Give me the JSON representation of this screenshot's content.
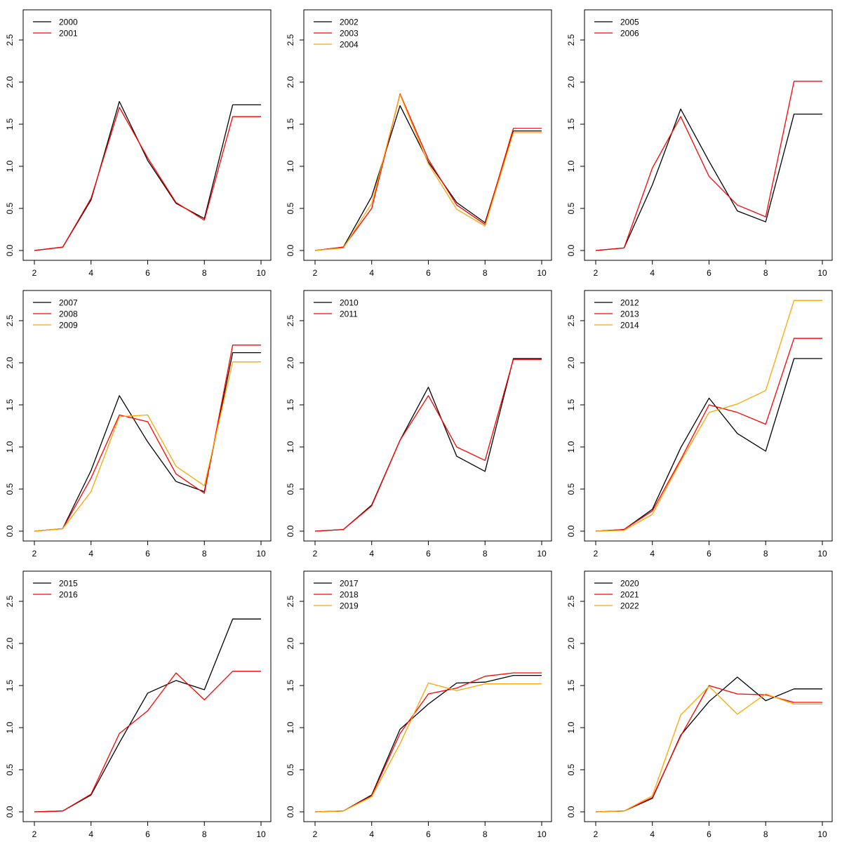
{
  "colors": [
    "#000000",
    "#ff0000",
    "#ffa500"
  ],
  "chart_data": [
    {
      "type": "line",
      "x": [
        2,
        3,
        4,
        5,
        6,
        7,
        8,
        9,
        10
      ],
      "xlim": [
        2,
        10
      ],
      "ylim": [
        0,
        2.75
      ],
      "xticks": [
        "2",
        "4",
        "6",
        "8",
        "10"
      ],
      "yticks": [
        "0.0",
        "0.5",
        "1.0",
        "1.5",
        "2.0",
        "2.5"
      ],
      "legend": "top-left",
      "xlabel": "",
      "ylabel": "",
      "series": [
        {
          "name": "2000",
          "color": "#000000",
          "values": [
            0,
            0.04,
            0.6,
            1.77,
            1.07,
            0.56,
            0.38,
            1.73,
            1.73
          ]
        },
        {
          "name": "2001",
          "color": "#ff0000",
          "values": [
            0,
            0.04,
            0.62,
            1.7,
            1.1,
            0.57,
            0.36,
            1.59,
            1.59
          ]
        }
      ]
    },
    {
      "type": "line",
      "x": [
        2,
        3,
        4,
        5,
        6,
        7,
        8,
        9,
        10
      ],
      "xlim": [
        2,
        10
      ],
      "ylim": [
        0,
        2.75
      ],
      "xticks": [
        "2",
        "4",
        "6",
        "8",
        "10"
      ],
      "yticks": [
        "0.0",
        "0.5",
        "1.0",
        "1.5",
        "2.0",
        "2.5"
      ],
      "legend": "top-left",
      "xlabel": "",
      "ylabel": "",
      "series": [
        {
          "name": "2002",
          "color": "#000000",
          "values": [
            0,
            0.04,
            0.64,
            1.72,
            1.05,
            0.57,
            0.33,
            1.42,
            1.42
          ]
        },
        {
          "name": "2003",
          "color": "#ff0000",
          "values": [
            0,
            0.04,
            0.5,
            1.86,
            1.08,
            0.54,
            0.31,
            1.45,
            1.45
          ]
        },
        {
          "name": "2004",
          "color": "#ffa500",
          "values": [
            0,
            0.03,
            0.56,
            1.85,
            1.03,
            0.49,
            0.29,
            1.4,
            1.4
          ]
        }
      ]
    },
    {
      "type": "line",
      "x": [
        2,
        3,
        4,
        5,
        6,
        7,
        8,
        9,
        10
      ],
      "xlim": [
        2,
        10
      ],
      "ylim": [
        0,
        2.75
      ],
      "xticks": [
        "2",
        "4",
        "6",
        "8",
        "10"
      ],
      "yticks": [
        "0.0",
        "0.5",
        "1.0",
        "1.5",
        "2.0",
        "2.5"
      ],
      "legend": "top-left",
      "xlabel": "",
      "ylabel": "",
      "series": [
        {
          "name": "2005",
          "color": "#000000",
          "values": [
            0,
            0.03,
            0.78,
            1.68,
            1.06,
            0.47,
            0.34,
            1.62,
            1.62
          ]
        },
        {
          "name": "2006",
          "color": "#ff0000",
          "values": [
            0,
            0.03,
            0.98,
            1.59,
            0.88,
            0.54,
            0.4,
            2.01,
            2.01
          ]
        }
      ]
    },
    {
      "type": "line",
      "x": [
        2,
        3,
        4,
        5,
        6,
        7,
        8,
        9,
        10
      ],
      "xlim": [
        2,
        10
      ],
      "ylim": [
        0,
        2.75
      ],
      "xticks": [
        "2",
        "4",
        "6",
        "8",
        "10"
      ],
      "yticks": [
        "0.0",
        "0.5",
        "1.0",
        "1.5",
        "2.0",
        "2.5"
      ],
      "legend": "top-left",
      "xlabel": "",
      "ylabel": "",
      "series": [
        {
          "name": "2007",
          "color": "#000000",
          "values": [
            0,
            0.03,
            0.72,
            1.61,
            1.06,
            0.59,
            0.47,
            2.12,
            2.12
          ]
        },
        {
          "name": "2008",
          "color": "#ff0000",
          "values": [
            0,
            0.03,
            0.63,
            1.38,
            1.3,
            0.68,
            0.45,
            2.21,
            2.21
          ]
        },
        {
          "name": "2009",
          "color": "#ffa500",
          "values": [
            0,
            0.03,
            0.47,
            1.36,
            1.38,
            0.77,
            0.54,
            2.01,
            2.01
          ]
        }
      ]
    },
    {
      "type": "line",
      "x": [
        2,
        3,
        4,
        5,
        6,
        7,
        8,
        9,
        10
      ],
      "xlim": [
        2,
        10
      ],
      "ylim": [
        0,
        2.75
      ],
      "xticks": [
        "2",
        "4",
        "6",
        "8",
        "10"
      ],
      "yticks": [
        "0.0",
        "0.5",
        "1.0",
        "1.5",
        "2.0",
        "2.5"
      ],
      "legend": "top-left",
      "xlabel": "",
      "ylabel": "",
      "series": [
        {
          "name": "2010",
          "color": "#000000",
          "values": [
            0,
            0.02,
            0.31,
            1.08,
            1.71,
            0.89,
            0.71,
            2.05,
            2.05
          ]
        },
        {
          "name": "2011",
          "color": "#ff0000",
          "values": [
            0,
            0.02,
            0.3,
            1.08,
            1.61,
            1.0,
            0.84,
            2.04,
            2.04
          ]
        }
      ]
    },
    {
      "type": "line",
      "x": [
        2,
        3,
        4,
        5,
        6,
        7,
        8,
        9,
        10
      ],
      "xlim": [
        2,
        10
      ],
      "ylim": [
        0,
        2.75
      ],
      "xticks": [
        "2",
        "4",
        "6",
        "8",
        "10"
      ],
      "yticks": [
        "0.0",
        "0.5",
        "1.0",
        "1.5",
        "2.0",
        "2.5"
      ],
      "legend": "top-left",
      "xlabel": "",
      "ylabel": "",
      "series": [
        {
          "name": "2012",
          "color": "#000000",
          "values": [
            0,
            0.02,
            0.26,
            0.99,
            1.58,
            1.16,
            0.95,
            2.05,
            2.05
          ]
        },
        {
          "name": "2013",
          "color": "#ff0000",
          "values": [
            0,
            0.02,
            0.24,
            0.85,
            1.5,
            1.41,
            1.27,
            2.29,
            2.29
          ]
        },
        {
          "name": "2014",
          "color": "#ffa500",
          "values": [
            0,
            0.01,
            0.2,
            0.83,
            1.41,
            1.51,
            1.67,
            2.74,
            2.74
          ]
        }
      ]
    },
    {
      "type": "line",
      "x": [
        2,
        3,
        4,
        5,
        6,
        7,
        8,
        9,
        10
      ],
      "xlim": [
        2,
        10
      ],
      "ylim": [
        0,
        2.75
      ],
      "xticks": [
        "2",
        "4",
        "6",
        "8",
        "10"
      ],
      "yticks": [
        "0.0",
        "0.5",
        "1.0",
        "1.5",
        "2.0",
        "2.5"
      ],
      "legend": "top-left",
      "xlabel": "",
      "ylabel": "",
      "series": [
        {
          "name": "2015",
          "color": "#000000",
          "values": [
            0,
            0.01,
            0.2,
            0.82,
            1.41,
            1.56,
            1.45,
            2.29,
            2.29
          ]
        },
        {
          "name": "2016",
          "color": "#ff0000",
          "values": [
            0,
            0.01,
            0.21,
            0.93,
            1.2,
            1.65,
            1.33,
            1.67,
            1.67
          ]
        }
      ]
    },
    {
      "type": "line",
      "x": [
        2,
        3,
        4,
        5,
        6,
        7,
        8,
        9,
        10
      ],
      "xlim": [
        2,
        10
      ],
      "ylim": [
        0,
        2.75
      ],
      "xticks": [
        "2",
        "4",
        "6",
        "8",
        "10"
      ],
      "yticks": [
        "0.0",
        "0.5",
        "1.0",
        "1.5",
        "2.0",
        "2.5"
      ],
      "legend": "top-left",
      "xlabel": "",
      "ylabel": "",
      "series": [
        {
          "name": "2017",
          "color": "#000000",
          "values": [
            0,
            0.01,
            0.2,
            0.98,
            1.28,
            1.53,
            1.54,
            1.62,
            1.62
          ]
        },
        {
          "name": "2018",
          "color": "#ff0000",
          "values": [
            0,
            0.01,
            0.19,
            0.93,
            1.4,
            1.47,
            1.61,
            1.65,
            1.65
          ]
        },
        {
          "name": "2019",
          "color": "#ffa500",
          "values": [
            0,
            0.01,
            0.18,
            0.81,
            1.53,
            1.44,
            1.52,
            1.52,
            1.52
          ]
        }
      ]
    },
    {
      "type": "line",
      "x": [
        2,
        3,
        4,
        5,
        6,
        7,
        8,
        9,
        10
      ],
      "xlim": [
        2,
        10
      ],
      "ylim": [
        0,
        2.75
      ],
      "xticks": [
        "2",
        "4",
        "6",
        "8",
        "10"
      ],
      "yticks": [
        "0.0",
        "0.5",
        "1.0",
        "1.5",
        "2.0",
        "2.5"
      ],
      "legend": "top-left",
      "xlabel": "",
      "ylabel": "",
      "series": [
        {
          "name": "2020",
          "color": "#000000",
          "values": [
            0,
            0.01,
            0.16,
            0.91,
            1.31,
            1.6,
            1.32,
            1.46,
            1.46
          ]
        },
        {
          "name": "2021",
          "color": "#ff0000",
          "values": [
            0,
            0.01,
            0.17,
            0.9,
            1.5,
            1.4,
            1.39,
            1.3,
            1.3
          ]
        },
        {
          "name": "2022",
          "color": "#ffa500",
          "values": [
            0,
            0.01,
            0.19,
            1.15,
            1.49,
            1.16,
            1.4,
            1.28,
            1.28
          ]
        }
      ]
    }
  ]
}
